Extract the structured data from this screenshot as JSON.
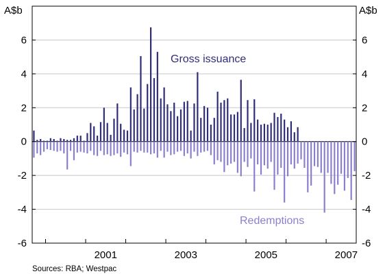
{
  "chart_data": {
    "type": "bar",
    "title": "",
    "unit_left": "A$b",
    "unit_right": "A$b",
    "source": "Sources: RBA; Westpac",
    "ylim": [
      -6,
      8
    ],
    "yticks": [
      -6,
      -4,
      -2,
      0,
      2,
      4,
      6
    ],
    "x_tick_labels": [
      "2001",
      "2003",
      "2005",
      "2007"
    ],
    "xlim": [
      "1999-09",
      "2007-10"
    ],
    "grid": "horizontal",
    "colors": {
      "gross": "#2f2c78",
      "redemptions": "#8a7fcf",
      "axis": "#000000",
      "grid": "#c8c8c8"
    },
    "annotations": {
      "gross": "Gross issuance",
      "redemptions": "Redemptions"
    },
    "categories": [
      "1999-09",
      "1999-10",
      "1999-11",
      "1999-12",
      "2000-01",
      "2000-02",
      "2000-03",
      "2000-04",
      "2000-05",
      "2000-06",
      "2000-07",
      "2000-08",
      "2000-09",
      "2000-10",
      "2000-11",
      "2000-12",
      "2001-01",
      "2001-02",
      "2001-03",
      "2001-04",
      "2001-05",
      "2001-06",
      "2001-07",
      "2001-08",
      "2001-09",
      "2001-10",
      "2001-11",
      "2001-12",
      "2002-01",
      "2002-02",
      "2002-03",
      "2002-04",
      "2002-05",
      "2002-06",
      "2002-07",
      "2002-08",
      "2002-09",
      "2002-10",
      "2002-11",
      "2002-12",
      "2003-01",
      "2003-02",
      "2003-03",
      "2003-04",
      "2003-05",
      "2003-06",
      "2003-07",
      "2003-08",
      "2003-09",
      "2003-10",
      "2003-11",
      "2003-12",
      "2004-01",
      "2004-02",
      "2004-03",
      "2004-04",
      "2004-05",
      "2004-06",
      "2004-07",
      "2004-08",
      "2004-09",
      "2004-10",
      "2004-11",
      "2004-12",
      "2005-01",
      "2005-02",
      "2005-03",
      "2005-04",
      "2005-05",
      "2005-06",
      "2005-07",
      "2005-08",
      "2005-09",
      "2005-10",
      "2005-11",
      "2005-12",
      "2006-01",
      "2006-02",
      "2006-03",
      "2006-04",
      "2006-05",
      "2006-06",
      "2006-07",
      "2006-08",
      "2006-09",
      "2006-10",
      "2006-11",
      "2006-12",
      "2007-01",
      "2007-02",
      "2007-03",
      "2007-04",
      "2007-05",
      "2007-06",
      "2007-07",
      "2007-08",
      "2007-09"
    ],
    "series": [
      {
        "name": "Gross issuance",
        "values": [
          0.65,
          0.1,
          0.15,
          0.05,
          0.05,
          0.2,
          0.15,
          0.05,
          0.2,
          0.15,
          0.1,
          0.1,
          0.2,
          0.35,
          0.35,
          0.05,
          0.5,
          1.1,
          0.9,
          0.35,
          1.15,
          2.0,
          1.1,
          0.4,
          1.35,
          2.25,
          1.05,
          0.7,
          0.65,
          3.2,
          1.9,
          2.8,
          5.05,
          1.95,
          3.4,
          6.75,
          3.75,
          5.3,
          2.55,
          3.2,
          2.2,
          1.8,
          2.3,
          1.5,
          1.9,
          2.35,
          2.4,
          0.65,
          2.25,
          4.1,
          1.4,
          2.1,
          2.0,
          1.0,
          1.4,
          2.95,
          2.3,
          2.45,
          2.55,
          1.6,
          1.6,
          1.75,
          3.65,
          0.8,
          2.45,
          1.1,
          2.5,
          1.3,
          1.0,
          1.05,
          1.0,
          1.1,
          1.7,
          1.45,
          1.65,
          1.3,
          0.85,
          1.2,
          0.55,
          0.85,
          0,
          0,
          0,
          0,
          0,
          0,
          0,
          0,
          0,
          0,
          0,
          0,
          0,
          0,
          0,
          0,
          0
        ]
      },
      {
        "name": "Redemptions",
        "values": [
          -0.95,
          -0.7,
          -0.8,
          -0.6,
          -0.45,
          -0.5,
          -0.55,
          -0.6,
          -0.55,
          -0.7,
          -1.65,
          -0.55,
          -1.1,
          -0.65,
          -0.6,
          -0.65,
          -0.7,
          -0.55,
          -0.8,
          -0.85,
          -0.55,
          -0.8,
          -0.75,
          -0.85,
          -0.8,
          -0.7,
          -0.9,
          -0.65,
          -0.75,
          -1.45,
          -0.6,
          -0.65,
          -0.55,
          -0.65,
          -0.65,
          -0.75,
          -0.7,
          -0.95,
          -0.55,
          -0.95,
          -0.6,
          -0.8,
          -0.75,
          -0.6,
          -0.55,
          -0.85,
          -0.7,
          -1.0,
          -0.6,
          -0.85,
          -0.65,
          -0.6,
          -0.55,
          -0.8,
          -1.35,
          -1.1,
          -1.2,
          -1.8,
          -1.4,
          -1.3,
          -1.2,
          -1.85,
          -2.05,
          -1.2,
          -1.5,
          -1.0,
          -2.95,
          -1.35,
          -1.95,
          -1.4,
          -1.6,
          -1.2,
          -2.85,
          -1.95,
          -1.55,
          -3.6,
          -2.05,
          -1.35,
          -1.6,
          -1.3,
          -1.05,
          -1.55,
          -3.0,
          -2.6,
          -1.45,
          -1.5,
          -1.85,
          -4.2,
          -1.85,
          -2.5,
          -3.1,
          -2.55,
          -1.9,
          -2.9,
          -2.15,
          -3.45,
          -1.75
        ]
      }
    ]
  }
}
